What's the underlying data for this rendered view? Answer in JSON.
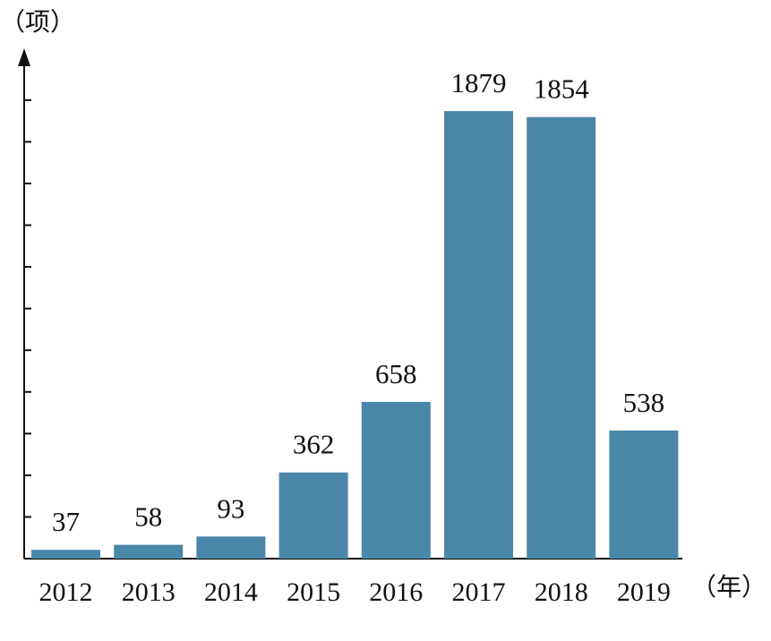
{
  "chart_data": {
    "type": "bar",
    "categories": [
      "2012",
      "2013",
      "2014",
      "2015",
      "2016",
      "2017",
      "2018",
      "2019"
    ],
    "values": [
      37,
      58,
      93,
      362,
      658,
      1879,
      1854,
      538
    ],
    "data_labels": [
      "37",
      "58",
      "93",
      "362",
      "658",
      "1879",
      "1854",
      "538"
    ],
    "title": "",
    "xlabel": "（年）",
    "ylabel": "（项）",
    "ylim": [
      0,
      2150
    ],
    "ytick_step": 175,
    "bar_color": "#4a87a8",
    "axis_color": "#111111",
    "grid": false,
    "legend": "none"
  }
}
